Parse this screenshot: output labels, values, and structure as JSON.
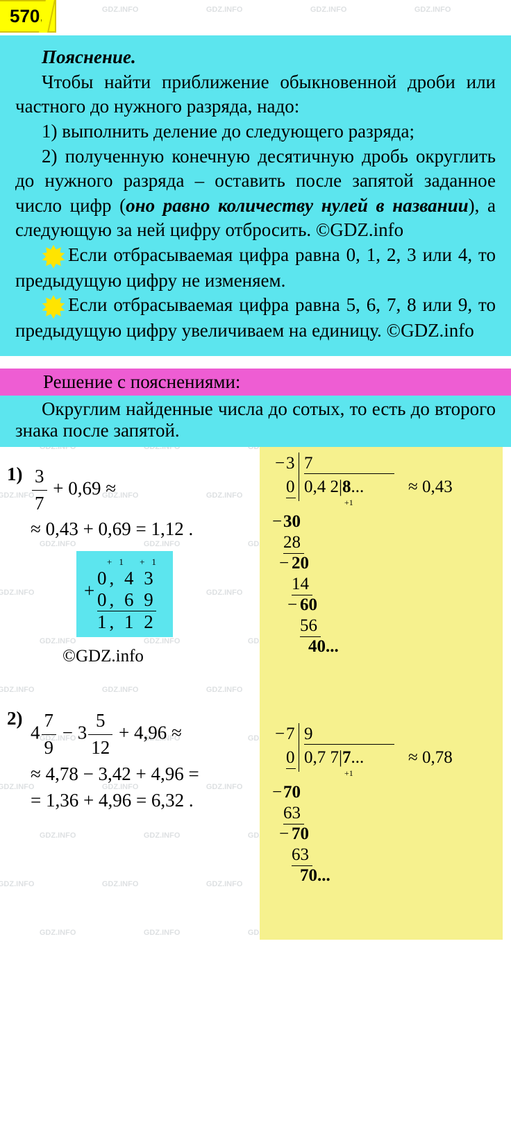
{
  "watermark_text": "GDZ.INFO",
  "problem_number": "570.",
  "explanation": {
    "title": "Пояснение.",
    "p1": "Чтобы найти приближение обыкновенной дроби или частного до нужного разряда, надо:",
    "p2": "1) выполнить деление до следующего разряда;",
    "p3_a": "2) полученную конечную десятичную дробь округлить до нужного разряда – оставить после запятой заданное число цифр (",
    "p3_i": "оно равно количеству нулей в названии",
    "p3_b": "), а следующую за ней цифру отбросить. ©GDZ.info",
    "p4": "Если отбрасываемая цифра равна 0, 1, 2, 3 или 4, то предыдущую цифру не изменяем.",
    "p5": "Если отбрасываемая цифра равна 5, 6, 7, 8 или 9, то предыдущую цифру увеличиваем на единицу. ©GDZ.info"
  },
  "solution_title": "Решение с пояснениями:",
  "solution_intro": "Округлим найденные числа до сотых, то есть до второго знака после запятой.",
  "copyright": "©GDZ.info",
  "problems": {
    "p1": {
      "label": "1)",
      "frac_num": "3",
      "frac_den": "7",
      "line1_tail": " + 0,69 ≈",
      "line2": "≈ 0,43 + 0,69 = 1,12 .",
      "addition": {
        "carry": "+1  +1",
        "a": "0, 4 3",
        "b": "0, 6 9",
        "sum": "1, 1 2"
      }
    },
    "p2": {
      "label": "2)",
      "whole1": "4",
      "frac1_num": "7",
      "frac1_den": "9",
      "mid": " − 3",
      "frac2_num": "5",
      "frac2_den": "12",
      "tail": " + 4,96 ≈",
      "line2": "≈ 4,78 − 3,42 + 4,96 =",
      "line3": "= 1,36 + 4,96 = 6,32 ."
    }
  },
  "longdiv1": {
    "dividend": "3",
    "divisor": "7",
    "quotient": "0,4 2|8...",
    "approx": "≈ 0,43",
    "carry_note": "+1",
    "steps": [
      "0",
      "30",
      "28",
      "20",
      "14",
      "60",
      "56",
      "40..."
    ]
  },
  "longdiv2": {
    "dividend": "7",
    "divisor": "9",
    "quotient": "0,7 7|7...",
    "approx": "≈ 0,78",
    "carry_note": "+1",
    "steps": [
      "0",
      "70",
      "63",
      "70",
      "63",
      "70..."
    ]
  },
  "colors": {
    "yellow_tag": "#ffff00",
    "cyan": "#5ce5ee",
    "magenta": "#ee5dd3",
    "pale_yellow": "#f6f18e",
    "star": "#ffe400"
  }
}
